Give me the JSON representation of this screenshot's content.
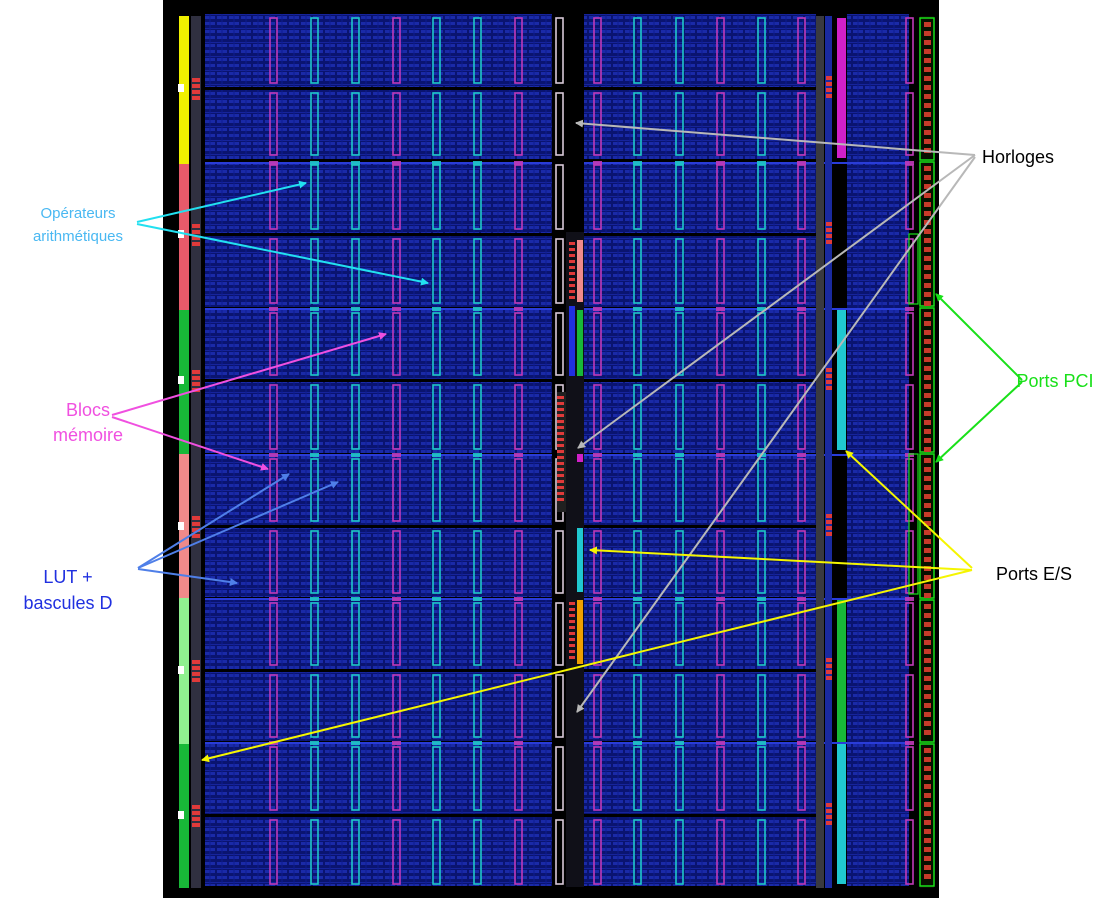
{
  "labels": {
    "arith_line1": "Opérateurs",
    "arith_line2": "arithmétiques",
    "mem_line1": "Blocs",
    "mem_line2": "mémoire",
    "lut_line1": "LUT +",
    "lut_line2": "bascules D",
    "clocks": "Horloges",
    "pci": "Ports PCI",
    "io": "Ports E/S"
  },
  "colors": {
    "arith": "#49b8f2",
    "arith_arrow": "#22e0f0",
    "mem": "#f050e0",
    "lut": "#2030e0",
    "lut_arrow": "#4f7fe8",
    "clock_arrow": "#b8b8b8",
    "pci": "#19e019",
    "io_arrow": "#f5f500",
    "die_bg": "#000000",
    "fabric": "#0c1880",
    "routing": "#2a3cd8",
    "dsp_column": "#1fc8c8",
    "bram_column": "#c03ab8",
    "clock_column": "#d8c8d8",
    "io_bank_red": "#e03a3a",
    "strip_yellow": "#f0f000",
    "strip_red": "#e85a6a",
    "strip_green": "#18b838",
    "strip_pink": "#f08a8a",
    "strip_lightgreen": "#90f090",
    "strip_magenta": "#d020c8",
    "strip_cyan": "#20c8d0",
    "strip_orange": "#f0a000"
  }
}
